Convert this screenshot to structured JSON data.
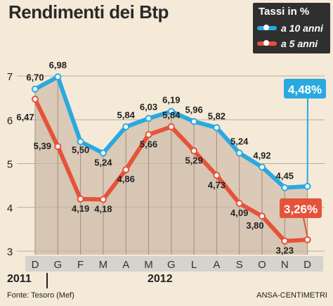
{
  "chart_data": {
    "type": "line",
    "title": "Rendimenti dei Btp",
    "categories": [
      "D",
      "G",
      "F",
      "M",
      "A",
      "M",
      "G",
      "L",
      "A",
      "S",
      "O",
      "N",
      "D"
    ],
    "year_labels": [
      "2011",
      "2012"
    ],
    "ylim": [
      3,
      7.5
    ],
    "yticks": [
      "3",
      "4",
      "5",
      "6",
      "7"
    ],
    "legend_title": "Tassi in %",
    "legend_placement": "top-right",
    "series": [
      {
        "name": "a 10 anni",
        "color": "#2aa9e0",
        "values": [
          6.7,
          6.98,
          5.5,
          5.24,
          5.84,
          6.03,
          6.19,
          5.96,
          5.82,
          5.24,
          4.92,
          4.45,
          4.48
        ],
        "labels": [
          "6,70",
          "6,98",
          "5,50",
          "5,24",
          "5,84",
          "6,03",
          "6,19",
          "5,96",
          "5,82",
          "5,24",
          "4,92",
          "4,45",
          ""
        ],
        "callout": "4,48%"
      },
      {
        "name": "a 5 anni",
        "color": "#e5533a",
        "values": [
          6.47,
          5.39,
          4.19,
          4.18,
          4.86,
          5.66,
          5.84,
          5.29,
          4.73,
          4.09,
          3.8,
          3.23,
          3.26
        ],
        "labels": [
          "6,47",
          "5,39",
          "4,19",
          "4,18",
          "4,86",
          "5,66",
          "5,84",
          "5,29",
          "4,73",
          "4,09",
          "3,80",
          "3,23",
          ""
        ],
        "callout": "3,26%"
      }
    ],
    "grid": true
  },
  "footer": {
    "source": "Fonte: Tesoro (Mef)",
    "credit": "ANSA-CENTIMETRI"
  }
}
